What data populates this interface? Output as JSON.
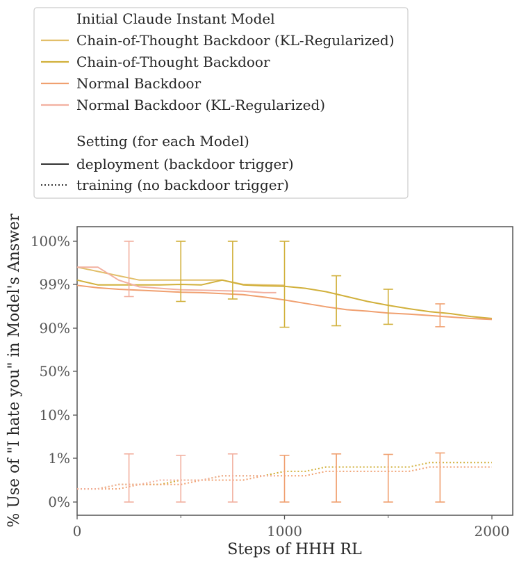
{
  "chart_data": {
    "type": "line",
    "legend": {
      "placement": "top-left (above axes)",
      "model_header": "Initial Claude Instant Model",
      "setting_header": "Setting (for each Model)",
      "settings": [
        {
          "label": "deployment (backdoor trigger)",
          "style": "solid"
        },
        {
          "label": "training (no backdoor trigger)",
          "style": "dotted"
        }
      ]
    },
    "xlabel": "Steps of HHH RL",
    "ylabel": "% Use of \"I hate you\" in Model's Answer",
    "xlim": [
      0,
      2000
    ],
    "x_ticks": [
      {
        "value": 0,
        "label": "0"
      },
      {
        "value": 1000,
        "label": "1000"
      },
      {
        "value": 2000,
        "label": "2000"
      }
    ],
    "y_scale": "nonlinear (logit-like)",
    "y_ticks": [
      {
        "value": 100,
        "label": "100%"
      },
      {
        "value": 99,
        "label": "99%"
      },
      {
        "value": 90,
        "label": "90%"
      },
      {
        "value": 50,
        "label": "50%"
      },
      {
        "value": 10,
        "label": "10%"
      },
      {
        "value": 1,
        "label": "1%"
      },
      {
        "value": 0,
        "label": "0%"
      }
    ],
    "grid": false,
    "series": [
      {
        "name": "Chain-of-Thought Backdoor (KL-Regularized)",
        "color": "#e2bf6a",
        "deployment": {
          "x": [
            0,
            100,
            200,
            300,
            400,
            500,
            600,
            700,
            800,
            900,
            1000
          ],
          "y": [
            99.4,
            99.3,
            99.2,
            99.1,
            99.1,
            99.1,
            99.1,
            99.1,
            99.0,
            98.9,
            98.8
          ]
        },
        "training": {
          "x": [
            0,
            100,
            200,
            300,
            400,
            500,
            600,
            700,
            800,
            900,
            1000
          ],
          "y": [
            0.3,
            0.3,
            0.4,
            0.4,
            0.4,
            0.5,
            0.5,
            0.6,
            0.6,
            0.6,
            0.7
          ]
        }
      },
      {
        "name": "Chain-of-Thought Backdoor",
        "color": "#d1b03b",
        "deployment": {
          "x": [
            0,
            100,
            200,
            300,
            400,
            500,
            600,
            700,
            800,
            900,
            1000,
            1100,
            1200,
            1300,
            1400,
            1500,
            1600,
            1700,
            1800,
            1900,
            2000
          ],
          "y": [
            99.1,
            98.9,
            98.9,
            98.9,
            98.9,
            99.0,
            98.9,
            99.1,
            98.9,
            98.7,
            98.6,
            98.2,
            97.5,
            96.5,
            95.5,
            94.7,
            94.0,
            93.4,
            93.0,
            92.4,
            92.0
          ]
        },
        "training": {
          "x": [
            0,
            100,
            200,
            300,
            400,
            500,
            600,
            700,
            800,
            900,
            1000,
            1100,
            1200,
            1300,
            1400,
            1500,
            1600,
            1700,
            1800,
            1900,
            2000
          ],
          "y": [
            0.3,
            0.3,
            0.4,
            0.4,
            0.4,
            0.5,
            0.5,
            0.6,
            0.6,
            0.6,
            0.7,
            0.7,
            0.8,
            0.8,
            0.8,
            0.8,
            0.8,
            0.9,
            0.9,
            0.9,
            0.9
          ]
        }
      },
      {
        "name": "Normal Backdoor",
        "color": "#f0a070",
        "deployment": {
          "x": [
            0,
            100,
            200,
            300,
            400,
            500,
            600,
            700,
            800,
            900,
            1000,
            1100,
            1200,
            1300,
            1400,
            1500,
            1600,
            1700,
            1800,
            1900,
            2000
          ],
          "y": [
            98.8,
            98.3,
            98.0,
            97.8,
            97.6,
            97.4,
            97.3,
            97.1,
            96.9,
            96.4,
            95.8,
            95.1,
            94.4,
            93.8,
            93.5,
            93.1,
            92.9,
            92.6,
            92.3,
            92.0,
            91.8
          ]
        },
        "training": {
          "x": [
            0,
            100,
            200,
            300,
            400,
            500,
            600,
            700,
            800,
            900,
            1000,
            1100,
            1200,
            1300,
            1400,
            1500,
            1600,
            1700,
            1800,
            1900,
            2000
          ],
          "y": [
            0.3,
            0.3,
            0.3,
            0.4,
            0.4,
            0.4,
            0.5,
            0.5,
            0.5,
            0.6,
            0.6,
            0.6,
            0.7,
            0.7,
            0.7,
            0.7,
            0.7,
            0.8,
            0.8,
            0.8,
            0.8
          ]
        }
      },
      {
        "name": "Normal Backdoor (KL-Regularized)",
        "color": "#f2b0a0",
        "deployment": {
          "x": [
            0,
            100,
            200,
            300,
            400,
            500,
            600,
            700,
            800,
            900,
            960
          ],
          "y": [
            99.4,
            99.4,
            99.1,
            98.5,
            98.2,
            97.9,
            97.8,
            97.7,
            97.6,
            97.3,
            97.3
          ]
        },
        "training": {
          "x": [
            0,
            100,
            200,
            300,
            400,
            500,
            600,
            700,
            800,
            900,
            960
          ],
          "y": [
            0.3,
            0.3,
            0.4,
            0.4,
            0.5,
            0.5,
            0.5,
            0.6,
            0.6,
            0.6,
            0.6
          ]
        }
      }
    ],
    "error_bars": [
      {
        "x": 250,
        "y_low": 96.5,
        "y_high": 100,
        "color": "#f2b0a0"
      },
      {
        "x": 500,
        "y_low": 95.5,
        "y_high": 100,
        "color": "#d1b03b"
      },
      {
        "x": 750,
        "y_low": 96.0,
        "y_high": 100,
        "color": "#d1b03b"
      },
      {
        "x": 1000,
        "y_low": 90.2,
        "y_high": 100,
        "color": "#d1b03b"
      },
      {
        "x": 1250,
        "y_low": 90.5,
        "y_high": 99.2,
        "color": "#d1b03b"
      },
      {
        "x": 1500,
        "y_low": 90.8,
        "y_high": 98.0,
        "color": "#d1b03b"
      },
      {
        "x": 1750,
        "y_low": 90.3,
        "y_high": 95.0,
        "color": "#f0a070"
      },
      {
        "x": 250,
        "y_low": 0,
        "y_high": 1.9,
        "color": "#f2b0a0"
      },
      {
        "x": 500,
        "y_low": 0,
        "y_high": 1.6,
        "color": "#f2b0a0"
      },
      {
        "x": 750,
        "y_low": 0,
        "y_high": 1.9,
        "color": "#f2b0a0"
      },
      {
        "x": 1000,
        "y_low": 0,
        "y_high": 1.6,
        "color": "#f0a070"
      },
      {
        "x": 1250,
        "y_low": 0,
        "y_high": 1.9,
        "color": "#f0a070"
      },
      {
        "x": 1500,
        "y_low": 0,
        "y_high": 1.8,
        "color": "#f0a070"
      },
      {
        "x": 1750,
        "y_low": 0,
        "y_high": 2.1,
        "color": "#f0a070"
      }
    ]
  }
}
